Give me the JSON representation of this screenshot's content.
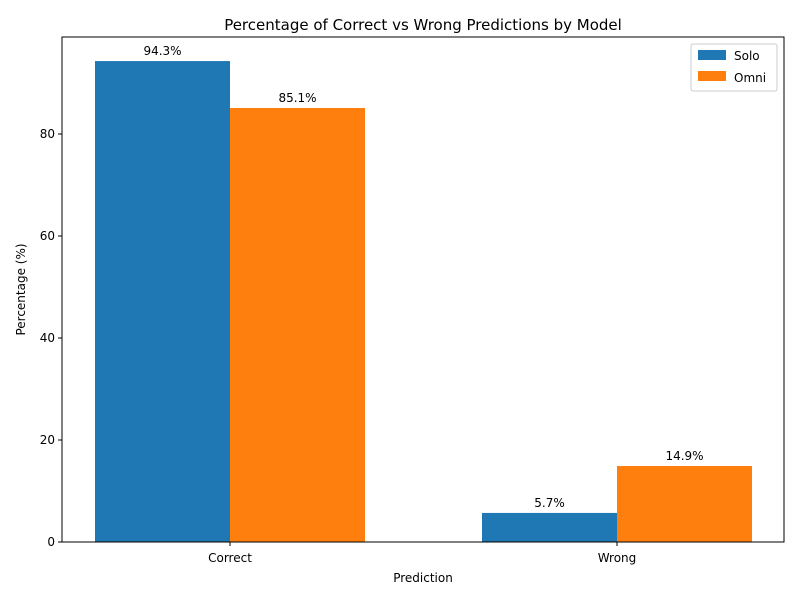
{
  "chart_data": {
    "type": "bar",
    "title": "Percentage of Correct vs Wrong Predictions by Model",
    "xlabel": "Prediction",
    "ylabel": "Percentage (%)",
    "categories": [
      "Correct",
      "Wrong"
    ],
    "series": [
      {
        "name": "Solo",
        "values": [
          94.3,
          5.7
        ],
        "labels": [
          "94.3%",
          "5.7%"
        ],
        "color": "#1f77b4"
      },
      {
        "name": "Omni",
        "values": [
          85.1,
          14.9
        ],
        "labels": [
          "85.1%",
          "14.9%"
        ],
        "color": "#ff7f0e"
      }
    ],
    "ylim": [
      0,
      99.02
    ],
    "yticks": [
      0,
      20,
      40,
      60,
      80
    ],
    "grid": false,
    "legend_position": "top-right"
  }
}
